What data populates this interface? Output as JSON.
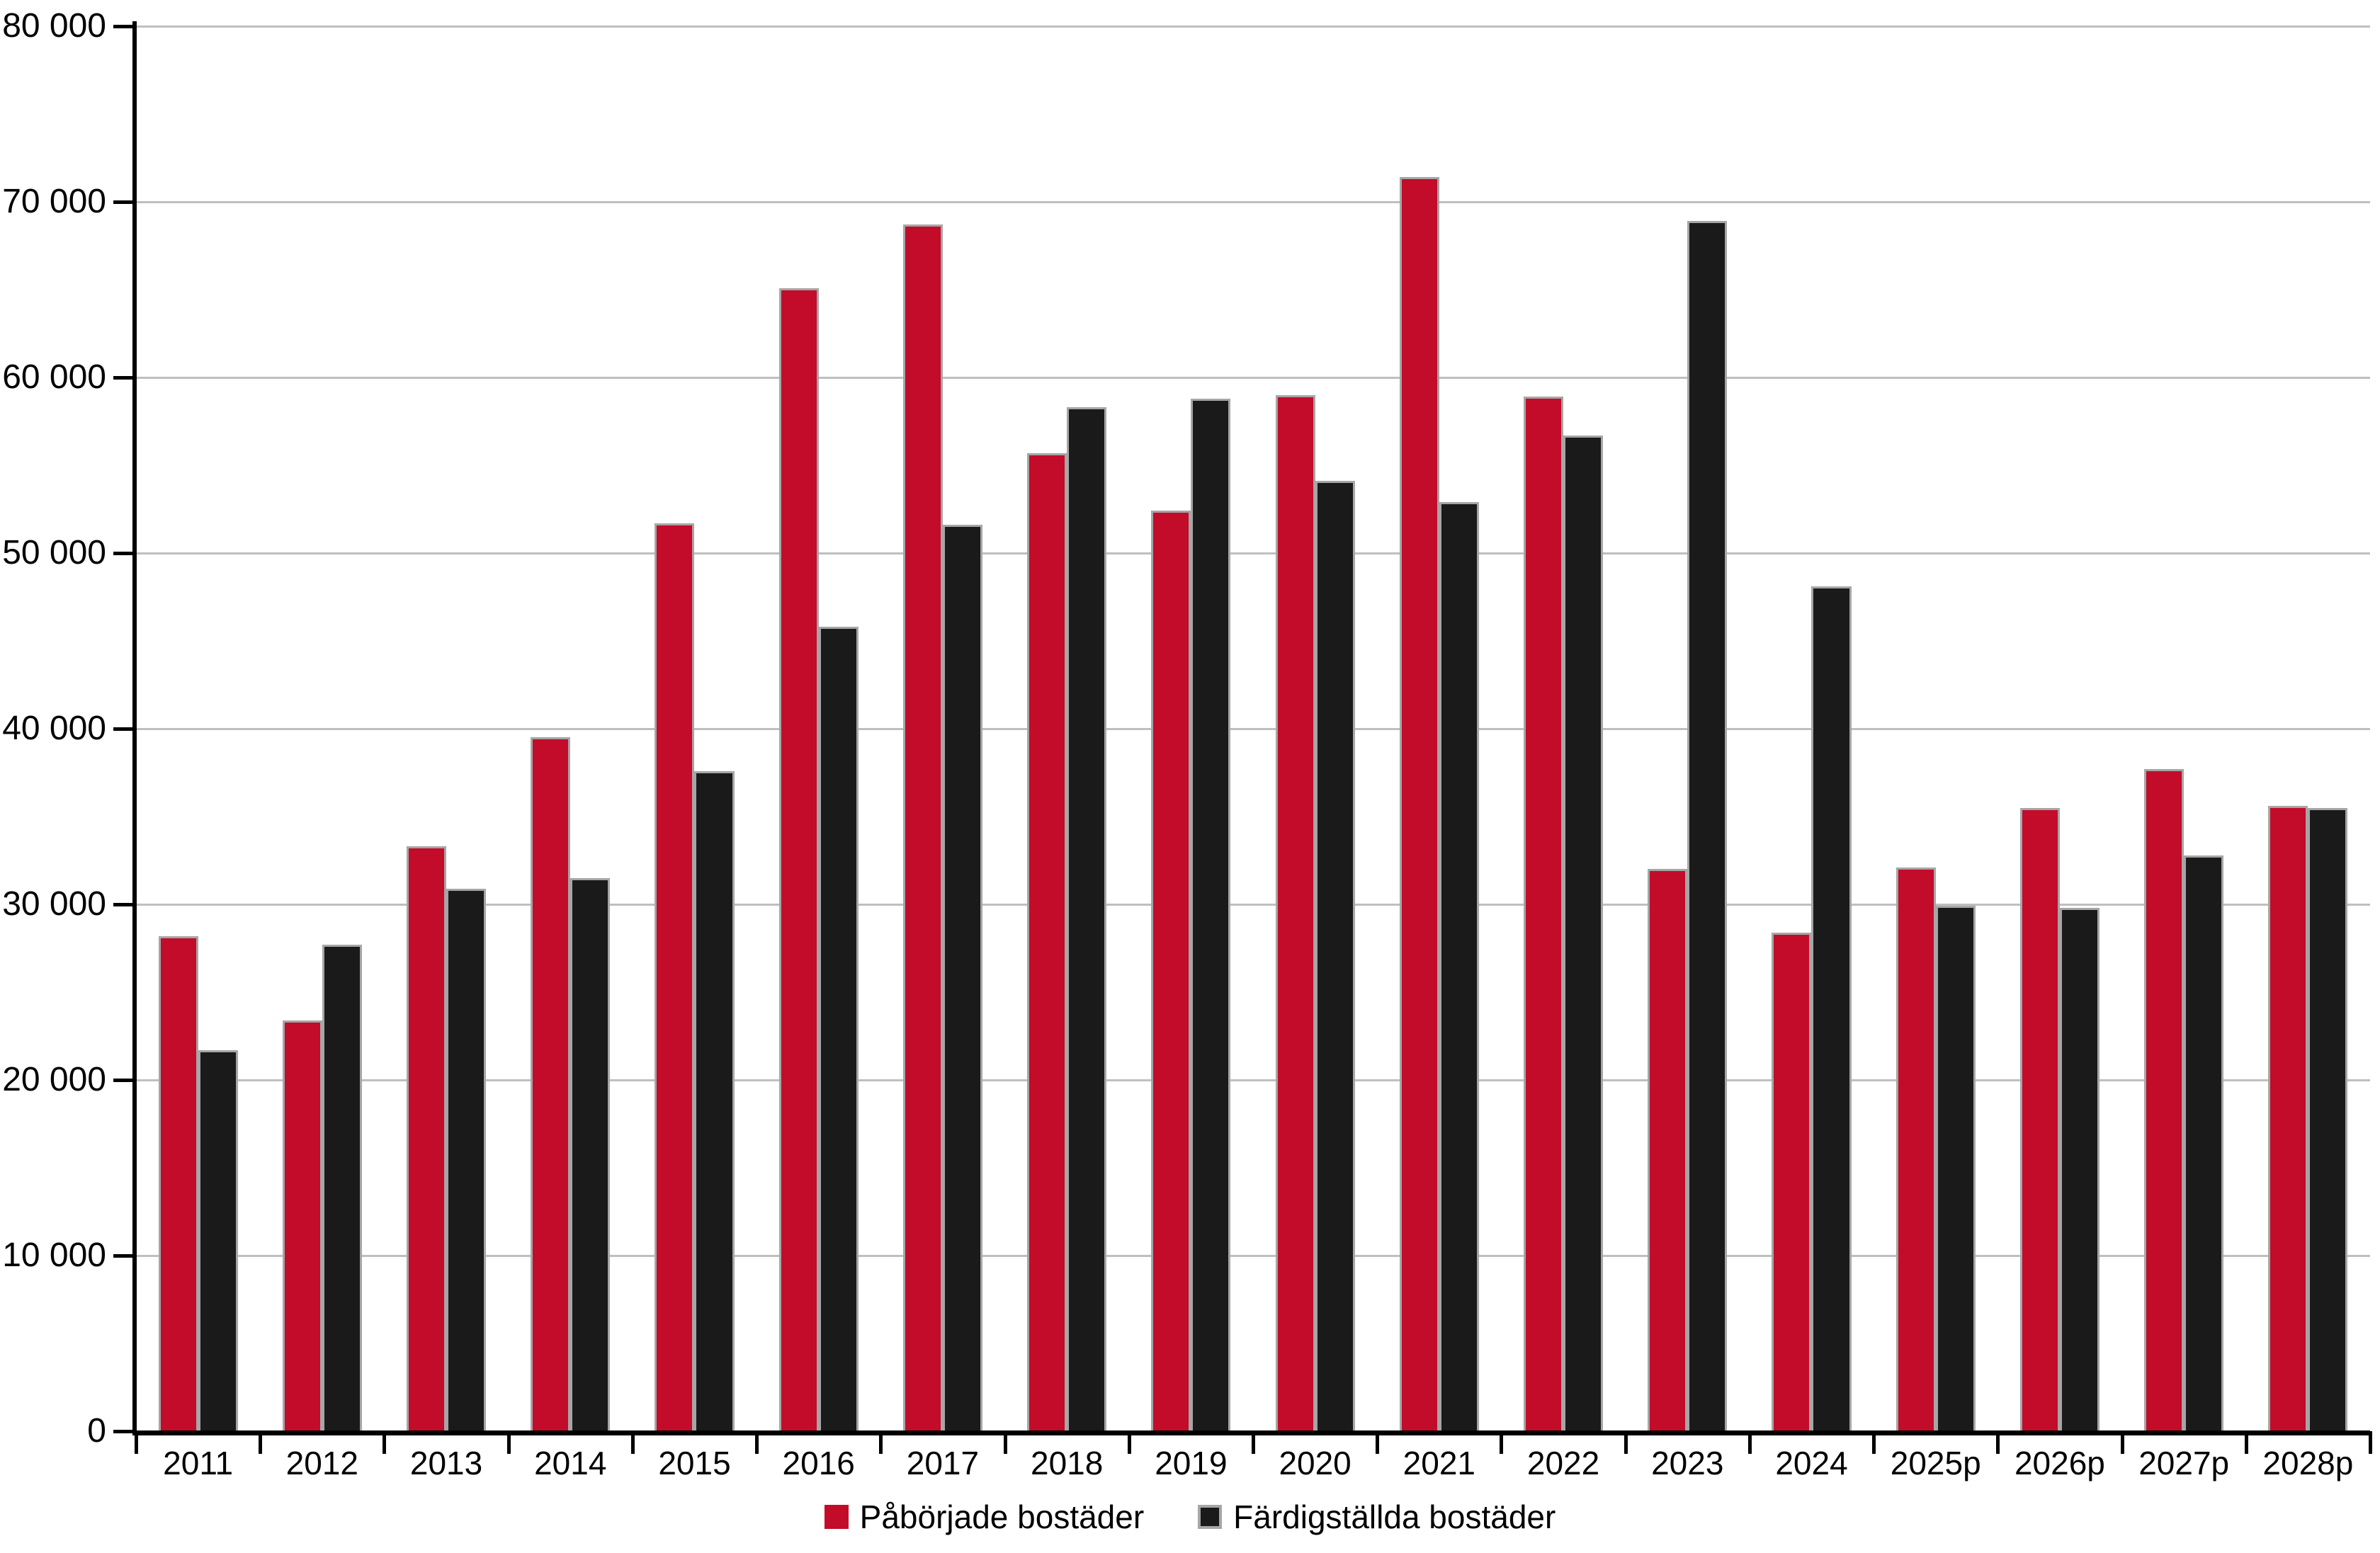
{
  "chart_data": {
    "type": "bar",
    "title": "",
    "xlabel": "",
    "ylabel": "",
    "categories": [
      "2011",
      "2012",
      "2013",
      "2014",
      "2015",
      "2016",
      "2017",
      "2018",
      "2019",
      "2020",
      "2021",
      "2022",
      "2023",
      "2024",
      "2025p",
      "2026p",
      "2027p",
      "2028p"
    ],
    "series": [
      {
        "name": "Påbörjade bostäder",
        "color": "#c30b2a",
        "border_color": "#a6a6a6",
        "values": [
          28200,
          23400,
          33300,
          39500,
          51700,
          65100,
          68700,
          55700,
          52400,
          59000,
          71400,
          58900,
          32000,
          28400,
          32100,
          35500,
          37700,
          35600
        ]
      },
      {
        "name": "Färdigställda bostäder",
        "color": "#1a1a1a",
        "border_color": "#a6a6a6",
        "values": [
          21700,
          27700,
          30900,
          31500,
          37600,
          45800,
          51600,
          58300,
          58800,
          54100,
          52900,
          56700,
          68900,
          48100,
          29900,
          29800,
          32800,
          35500
        ]
      }
    ],
    "ylim": [
      0,
      80000
    ],
    "y_tick_step": 10000,
    "y_tick_labels_top_down": [
      "80 000",
      "70 000",
      "60 000",
      "50 000",
      "40 000",
      "30 000",
      "20 000",
      "10 000",
      "0"
    ],
    "grid": true,
    "gridline_color": "#bfbfbf",
    "axis_color": "#000000",
    "legend_position": "bottom"
  }
}
